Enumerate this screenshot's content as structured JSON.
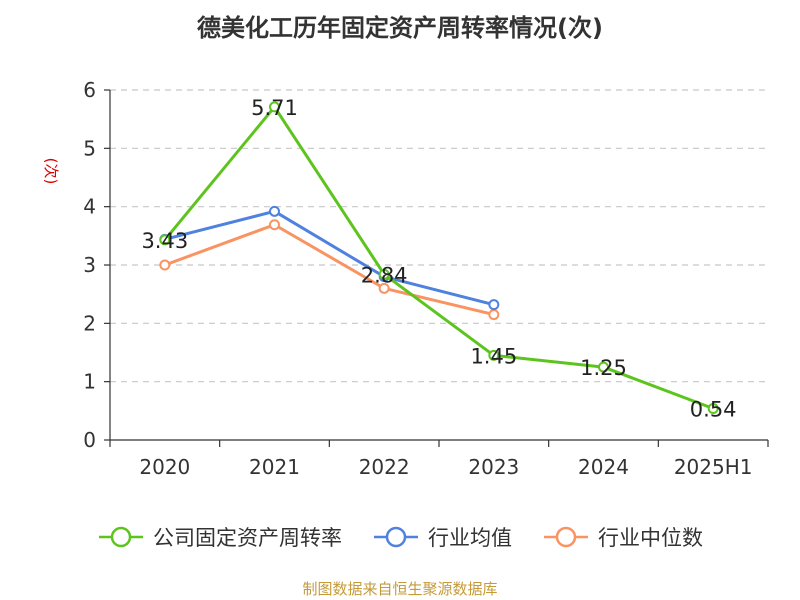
{
  "title": "德美化工历年固定资产周转率情况(次)",
  "source": "制图数据来自恒生聚源数据库",
  "colors": {
    "company": "#5dc41e",
    "industry_avg": "#4f81de",
    "industry_median": "#f99361",
    "source": "#c59a3a",
    "ylabel": "#dd0000"
  },
  "chart_data": {
    "type": "line",
    "title": "德美化工历年固定资产周转率情况(次)",
    "xlabel": "",
    "ylabel": "(次)",
    "categories": [
      "2020",
      "2021",
      "2022",
      "2023",
      "2024",
      "2025H1"
    ],
    "ylim": [
      0,
      6
    ],
    "yticks": [
      0,
      1,
      2,
      3,
      4,
      5,
      6
    ],
    "grid": true,
    "legend_position": "bottom",
    "series": [
      {
        "name": "公司固定资产周转率",
        "values": [
          3.43,
          5.71,
          2.84,
          1.45,
          1.25,
          0.54
        ],
        "labels": [
          "3.43",
          "5.71",
          "2.84",
          "1.45",
          "1.25",
          "0.54"
        ],
        "color": "#5dc41e"
      },
      {
        "name": "行业均值",
        "values": [
          3.44,
          3.92,
          2.8,
          2.32,
          null,
          null
        ],
        "color": "#4f81de"
      },
      {
        "name": "行业中位数",
        "values": [
          3.0,
          3.69,
          2.6,
          2.15,
          null,
          null
        ],
        "color": "#f99361"
      }
    ]
  }
}
